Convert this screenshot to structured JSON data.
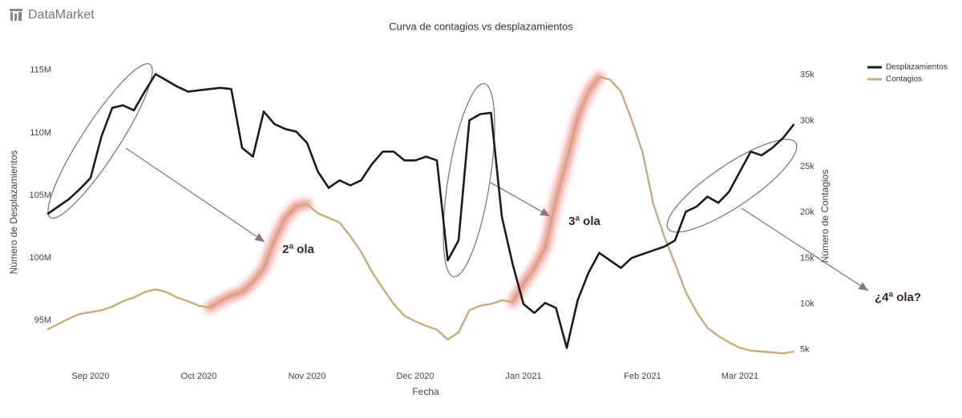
{
  "brand": "DataMarket",
  "chart_data": {
    "type": "line",
    "title": "Curva de contagios vs desplazamientos",
    "x_label": "Fecha",
    "y_label": "Número de Desplazamientos",
    "y2_label": "Número de Contagios",
    "categories": [
      null,
      null,
      null,
      null,
      "Sep 2020",
      null,
      null,
      null,
      null,
      null,
      null,
      null,
      null,
      null,
      "Oct 2020",
      null,
      null,
      null,
      null,
      null,
      null,
      null,
      null,
      null,
      "Nov 2020",
      null,
      null,
      null,
      null,
      null,
      null,
      null,
      null,
      null,
      "Dec 2020",
      null,
      null,
      null,
      null,
      null,
      null,
      null,
      null,
      null,
      "Jan 2021",
      null,
      null,
      null,
      null,
      null,
      null,
      null,
      null,
      null,
      null,
      "Feb 2021",
      null,
      null,
      null,
      null,
      null,
      null,
      null,
      null,
      "Mar 2021",
      null,
      null,
      null,
      null,
      null
    ],
    "series": [
      {
        "name": "Desplazamientos",
        "color": "#1c1c1c",
        "axis": "y",
        "values": [
          103500000,
          104100000,
          104700000,
          105500000,
          106400000,
          109700000,
          112000000,
          112200000,
          111800000,
          113300000,
          114700000,
          114200000,
          113700000,
          113300000,
          113400000,
          113500000,
          113600000,
          113500000,
          108800000,
          108100000,
          111700000,
          110700000,
          110300000,
          110100000,
          109200000,
          106900000,
          105600000,
          106200000,
          105800000,
          106200000,
          107500000,
          108500000,
          108500000,
          107800000,
          107800000,
          108100000,
          107800000,
          99800000,
          101400000,
          111000000,
          111500000,
          111600000,
          103300000,
          99500000,
          96300000,
          95600000,
          96400000,
          96000000,
          92800000,
          96600000,
          98800000,
          100400000,
          99800000,
          99200000,
          100000000,
          100300000,
          100600000,
          100900000,
          101400000,
          103700000,
          104100000,
          104900000,
          104400000,
          105300000,
          106900000,
          108500000,
          108200000,
          108800000,
          109600000,
          110700000
        ]
      },
      {
        "name": "Contagios",
        "color": "#c9ab7c",
        "axis": "y2",
        "values": [
          7200,
          7800,
          8400,
          8900,
          9100,
          9300,
          9700,
          10300,
          10700,
          11300,
          11600,
          11300,
          10700,
          10300,
          9800,
          9600,
          10300,
          10900,
          11300,
          12400,
          13900,
          17000,
          19400,
          20700,
          20900,
          19900,
          19400,
          18900,
          17400,
          15700,
          13500,
          11700,
          10000,
          8700,
          8100,
          7600,
          7200,
          6100,
          6900,
          9300,
          9800,
          10000,
          10400,
          10200,
          12200,
          13900,
          16100,
          21400,
          25700,
          30300,
          33200,
          34800,
          34500,
          33200,
          30100,
          26600,
          20900,
          17400,
          14400,
          11300,
          9100,
          7400,
          6500,
          5800,
          5200,
          4900,
          4800,
          4700,
          4600,
          4800
        ]
      }
    ],
    "ylim": [
      92000000,
      115500000
    ],
    "yticks": [
      {
        "value": 95000000,
        "label": "95M"
      },
      {
        "value": 100000000,
        "label": "100M"
      },
      {
        "value": 105000000,
        "label": "105M"
      },
      {
        "value": 110000000,
        "label": "110M"
      },
      {
        "value": 115000000,
        "label": "115M"
      }
    ],
    "y2lim": [
      4100,
      36200
    ],
    "y2ticks": [
      {
        "value": 5000,
        "label": "5k"
      },
      {
        "value": 10000,
        "label": "10k"
      },
      {
        "value": 15000,
        "label": "15k"
      },
      {
        "value": 20000,
        "label": "20k"
      },
      {
        "value": 25000,
        "label": "25k"
      },
      {
        "value": 30000,
        "label": "30k"
      },
      {
        "value": 35000,
        "label": "35k"
      }
    ],
    "grid": false,
    "legend": "top-right",
    "annotations": [
      "2ª ola",
      "3ª ola",
      "¿4ª ola?"
    ]
  }
}
